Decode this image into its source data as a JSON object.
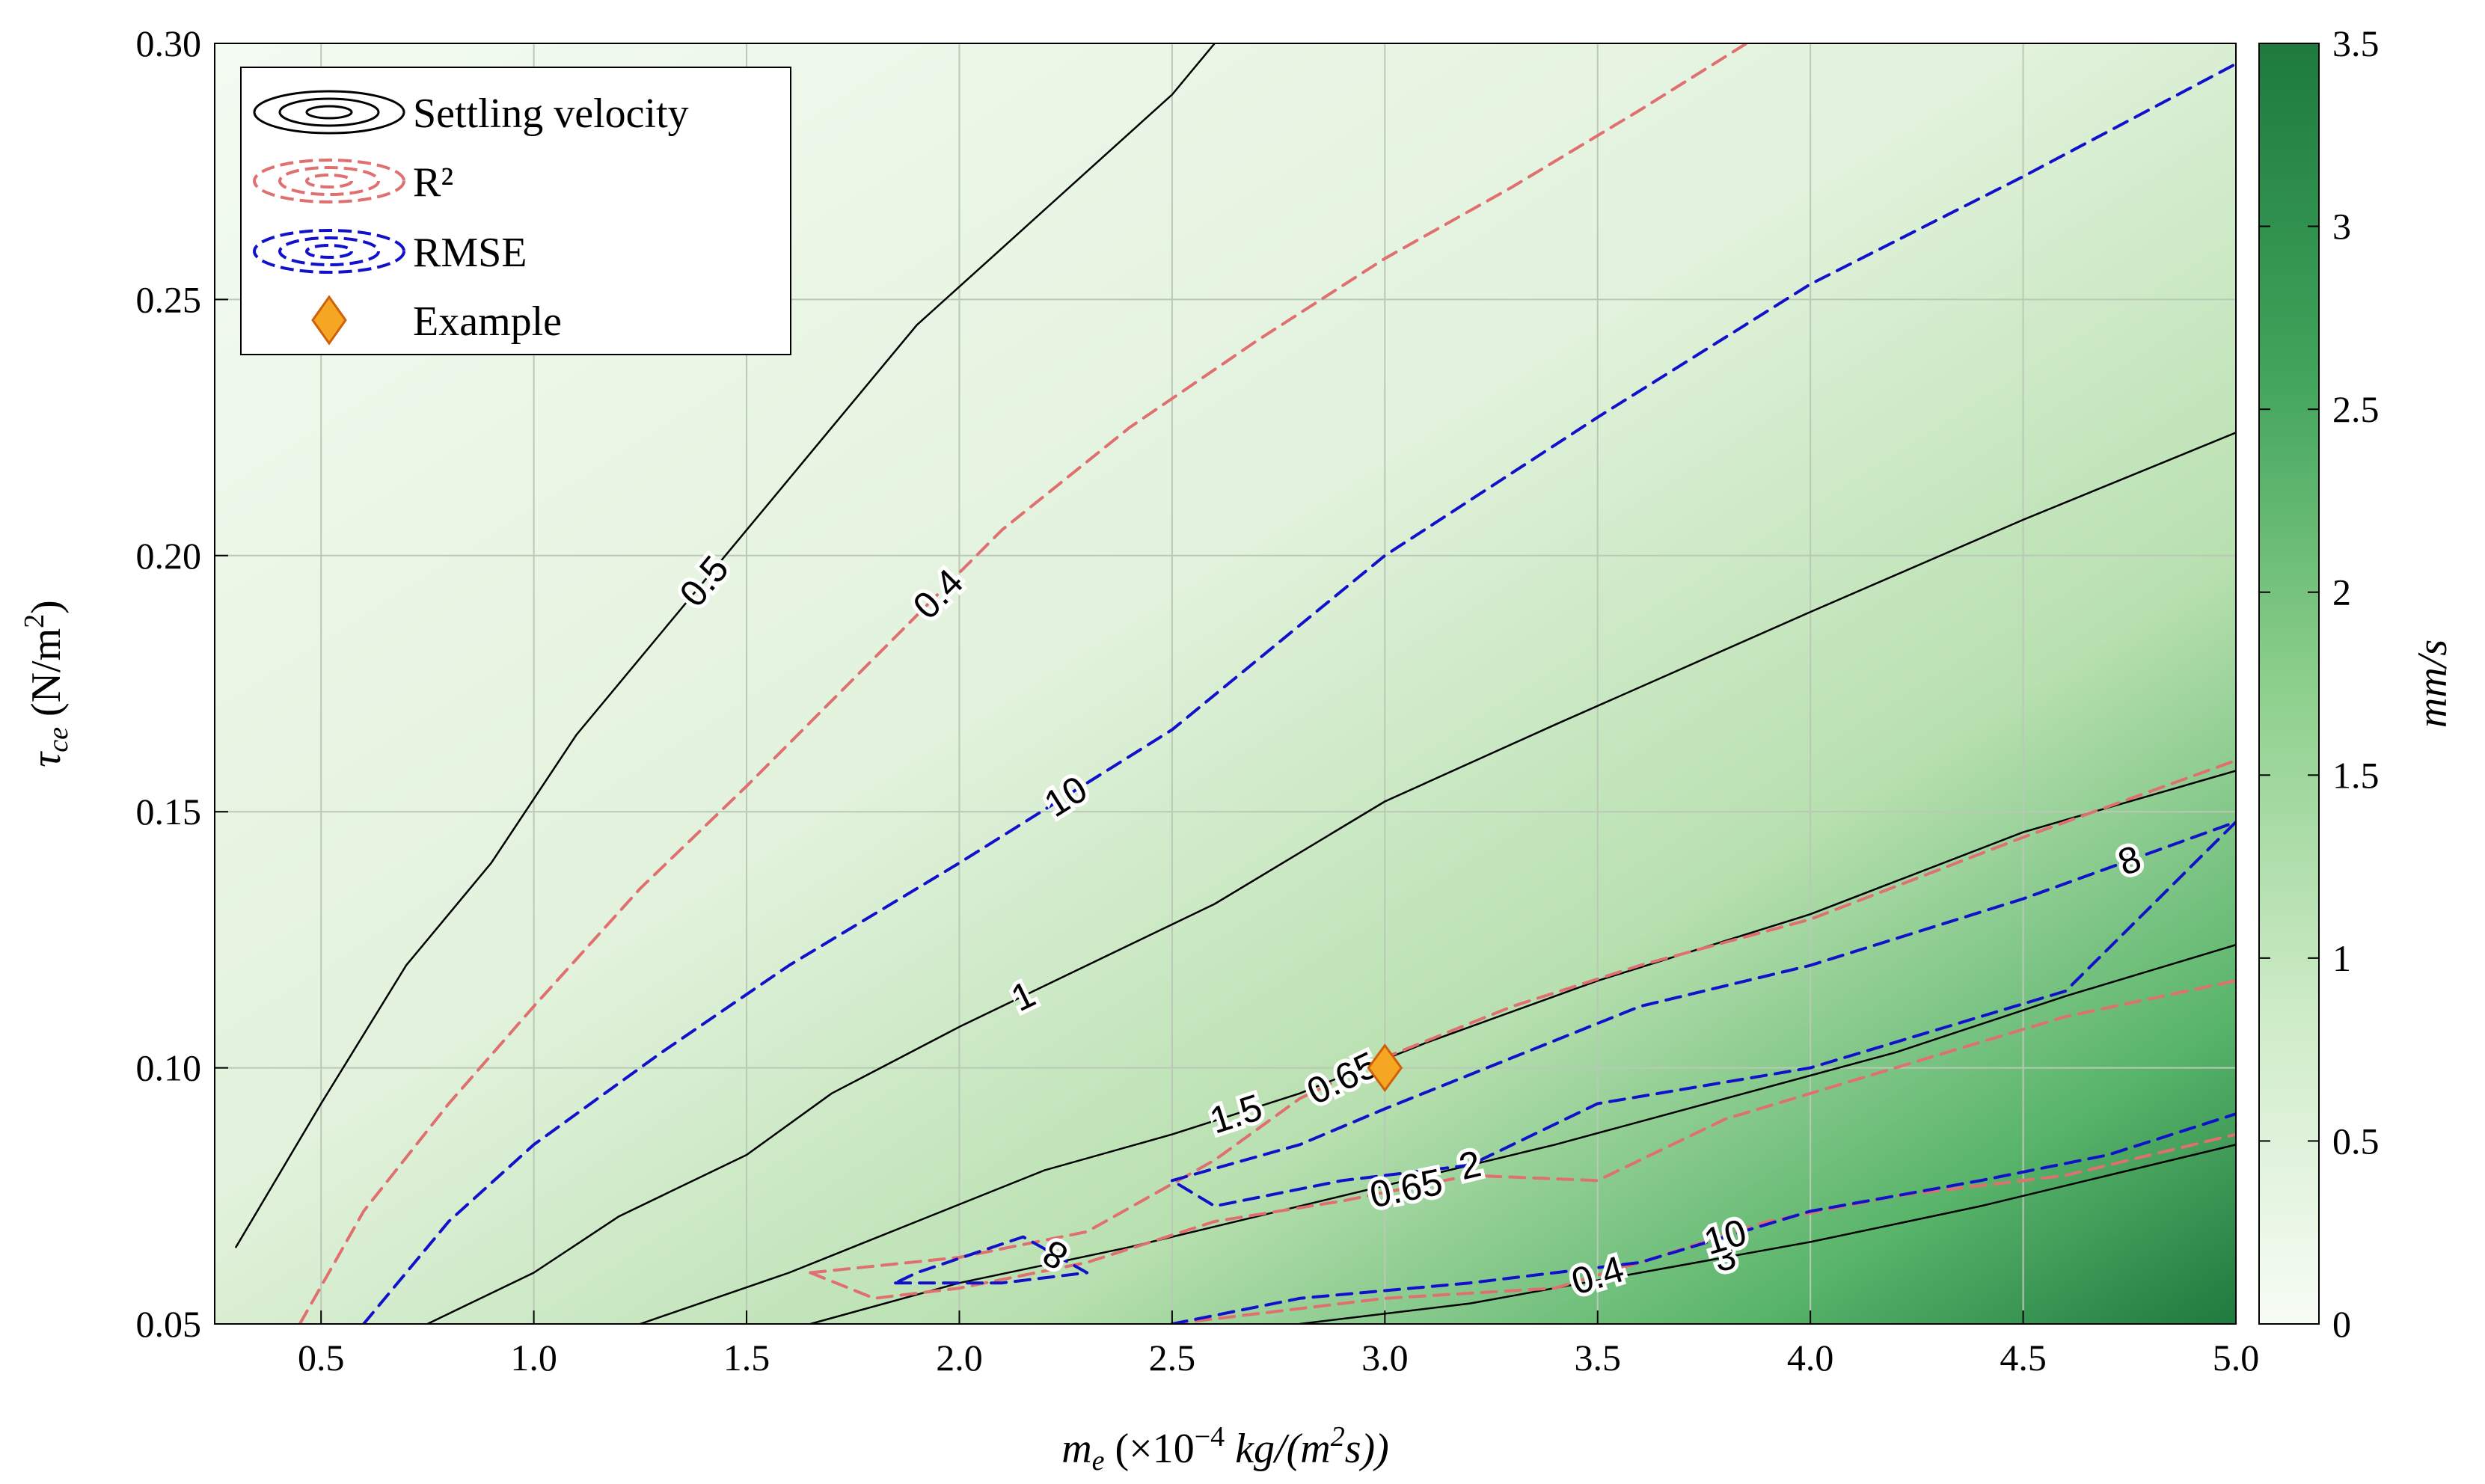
{
  "chart_data": {
    "type": "contour",
    "xlabel": "m_e (×10^−4 kg/(m^2 s))",
    "ylabel": "τ_ce (N/m^2)",
    "xlim": [
      0.25,
      5.0
    ],
    "ylim": [
      0.05,
      0.3
    ],
    "x_ticks": [
      "0.5",
      "1.0",
      "1.5",
      "2.0",
      "2.5",
      "3.0",
      "3.5",
      "4.0",
      "4.5",
      "5.0"
    ],
    "y_ticks": [
      "0.05",
      "0.10",
      "0.15",
      "0.20",
      "0.25",
      "0.30"
    ],
    "grid": true,
    "colorbar": {
      "label": "mm/s",
      "range": [
        0,
        3.5
      ],
      "ticks": [
        "0",
        "0.5",
        "1",
        "1.5",
        "2",
        "2.5",
        "3",
        "3.5"
      ],
      "color_low": "#f4fbf2",
      "color_high": "#1e7a3e"
    },
    "legend": {
      "position": "top-left",
      "entries": [
        "Settling velocity",
        "R²",
        "RMSE",
        "Example"
      ]
    },
    "colors": {
      "settling": "#000000",
      "r2": "#e07070",
      "r2_label": "#cc1111",
      "rmse": "#1111cc",
      "marker_fill": "#f5a623",
      "marker_edge": "#d0600a"
    },
    "series": [
      {
        "name": "Settling velocity",
        "style": "solid",
        "contours": [
          {
            "label": "0.5",
            "points": [
              [
                0.3,
                0.065
              ],
              [
                0.5,
                0.093
              ],
              [
                0.7,
                0.12
              ],
              [
                0.9,
                0.14
              ],
              [
                1.1,
                0.165
              ],
              [
                1.3,
                0.185
              ],
              [
                1.5,
                0.205
              ],
              [
                1.7,
                0.225
              ],
              [
                1.9,
                0.245
              ],
              [
                2.1,
                0.26
              ],
              [
                2.3,
                0.275
              ],
              [
                2.5,
                0.29
              ],
              [
                2.6,
                0.3
              ]
            ]
          },
          {
            "label": "1",
            "points": [
              [
                0.75,
                0.05
              ],
              [
                1.0,
                0.06
              ],
              [
                1.2,
                0.071
              ],
              [
                1.5,
                0.083
              ],
              [
                1.7,
                0.095
              ],
              [
                2.0,
                0.108
              ],
              [
                2.3,
                0.12
              ],
              [
                2.6,
                0.132
              ],
              [
                3.0,
                0.152
              ],
              [
                3.4,
                0.167
              ],
              [
                4.0,
                0.189
              ],
              [
                4.5,
                0.207
              ],
              [
                5.0,
                0.224
              ]
            ]
          },
          {
            "label": "1.5",
            "points": [
              [
                1.25,
                0.05
              ],
              [
                1.6,
                0.06
              ],
              [
                1.9,
                0.07
              ],
              [
                2.2,
                0.08
              ],
              [
                2.5,
                0.087
              ],
              [
                2.8,
                0.095
              ],
              [
                3.1,
                0.105
              ],
              [
                3.5,
                0.117
              ],
              [
                4.0,
                0.13
              ],
              [
                4.5,
                0.146
              ],
              [
                5.0,
                0.158
              ]
            ]
          },
          {
            "label": "2",
            "points": [
              [
                1.65,
                0.05
              ],
              [
                2.0,
                0.058
              ],
              [
                2.4,
                0.065
              ],
              [
                2.7,
                0.071
              ],
              [
                3.0,
                0.077
              ],
              [
                3.4,
                0.085
              ],
              [
                3.8,
                0.094
              ],
              [
                4.2,
                0.103
              ],
              [
                4.6,
                0.114
              ],
              [
                5.0,
                0.124
              ]
            ]
          },
          {
            "label": "3",
            "points": [
              [
                2.8,
                0.05
              ],
              [
                3.2,
                0.054
              ],
              [
                3.6,
                0.06
              ],
              [
                4.0,
                0.066
              ],
              [
                4.4,
                0.073
              ],
              [
                4.7,
                0.079
              ],
              [
                5.0,
                0.085
              ]
            ]
          }
        ]
      },
      {
        "name": "R²",
        "style": "dashed",
        "contours": [
          {
            "label": "0.4",
            "points": [
              [
                0.45,
                0.05
              ],
              [
                0.6,
                0.072
              ],
              [
                0.8,
                0.093
              ],
              [
                1.0,
                0.112
              ],
              [
                1.25,
                0.135
              ],
              [
                1.5,
                0.155
              ],
              [
                1.8,
                0.18
              ],
              [
                2.1,
                0.205
              ],
              [
                2.4,
                0.225
              ],
              [
                2.7,
                0.242
              ],
              [
                3.0,
                0.258
              ],
              [
                3.3,
                0.272
              ],
              [
                3.6,
                0.287
              ],
              [
                3.85,
                0.3
              ]
            ]
          },
          {
            "label": "0.65",
            "points": [
              [
                1.65,
                0.06
              ],
              [
                2.0,
                0.063
              ],
              [
                2.3,
                0.068
              ],
              [
                2.6,
                0.082
              ],
              [
                2.8,
                0.094
              ],
              [
                3.0,
                0.102
              ],
              [
                3.3,
                0.112
              ],
              [
                3.6,
                0.12
              ],
              [
                4.0,
                0.129
              ],
              [
                4.5,
                0.145
              ],
              [
                5.0,
                0.16
              ]
            ]
          },
          {
            "label": "0.65",
            "points": [
              [
                1.65,
                0.06
              ],
              [
                1.8,
                0.055
              ],
              [
                2.0,
                0.057
              ],
              [
                2.3,
                0.062
              ],
              [
                2.6,
                0.07
              ],
              [
                2.9,
                0.074
              ],
              [
                3.2,
                0.079
              ],
              [
                3.5,
                0.078
              ],
              [
                3.8,
                0.09
              ],
              [
                4.2,
                0.1
              ],
              [
                4.6,
                0.11
              ],
              [
                5.0,
                0.117
              ]
            ]
          },
          {
            "label": "0.4",
            "points": [
              [
                2.5,
                0.05
              ],
              [
                2.8,
                0.053
              ],
              [
                3.0,
                0.055
              ],
              [
                3.4,
                0.057
              ],
              [
                3.6,
                0.062
              ],
              [
                3.9,
                0.07
              ],
              [
                4.2,
                0.075
              ],
              [
                4.6,
                0.079
              ],
              [
                5.0,
                0.087
              ]
            ]
          }
        ]
      },
      {
        "name": "RMSE",
        "style": "dashed",
        "contours": [
          {
            "label": "10",
            "points": [
              [
                0.6,
                0.05
              ],
              [
                0.8,
                0.07
              ],
              [
                1.0,
                0.085
              ],
              [
                1.3,
                0.103
              ],
              [
                1.6,
                0.12
              ],
              [
                2.0,
                0.14
              ],
              [
                2.5,
                0.166
              ],
              [
                3.0,
                0.2
              ],
              [
                3.5,
                0.227
              ],
              [
                4.0,
                0.253
              ],
              [
                4.5,
                0.274
              ],
              [
                5.0,
                0.296
              ]
            ]
          },
          {
            "label": "8",
            "points": [
              [
                1.85,
                0.058
              ],
              [
                2.1,
                0.058
              ],
              [
                2.3,
                0.06
              ],
              [
                2.15,
                0.067
              ],
              [
                1.9,
                0.06
              ],
              [
                1.85,
                0.058
              ]
            ]
          },
          {
            "label": "8",
            "points": [
              [
                2.5,
                0.078
              ],
              [
                2.8,
                0.085
              ],
              [
                3.0,
                0.092
              ],
              [
                3.3,
                0.102
              ],
              [
                3.6,
                0.112
              ],
              [
                4.0,
                0.12
              ],
              [
                4.5,
                0.133
              ],
              [
                5.0,
                0.148
              ],
              [
                4.6,
                0.115
              ],
              [
                4.0,
                0.1
              ],
              [
                3.5,
                0.093
              ],
              [
                3.2,
                0.081
              ],
              [
                2.9,
                0.078
              ],
              [
                2.6,
                0.073
              ],
              [
                2.5,
                0.078
              ]
            ]
          },
          {
            "label": "10",
            "points": [
              [
                2.5,
                0.05
              ],
              [
                2.8,
                0.055
              ],
              [
                3.2,
                0.058
              ],
              [
                3.6,
                0.062
              ],
              [
                4.0,
                0.072
              ],
              [
                4.4,
                0.078
              ],
              [
                4.7,
                0.083
              ],
              [
                5.0,
                0.091
              ]
            ]
          }
        ]
      }
    ],
    "example_point": {
      "x": 3.0,
      "y": 0.1
    }
  }
}
